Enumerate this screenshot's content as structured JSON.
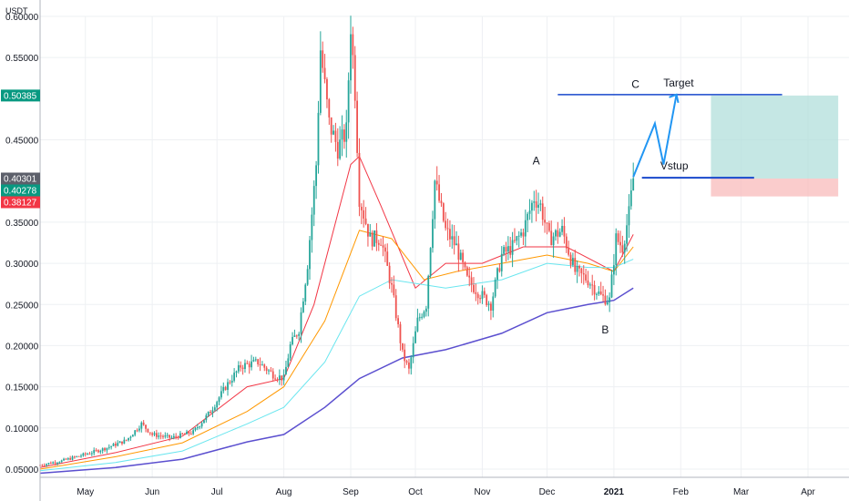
{
  "chart_data": {
    "type": "candlestick",
    "currency": "USDT",
    "ylim": [
      0.04,
      0.6
    ],
    "y_ticks": [
      0.05,
      0.1,
      0.15,
      0.2,
      0.25,
      0.3,
      0.35,
      0.45,
      0.55,
      0.6
    ],
    "y_tick_labels": [
      "0.05000",
      "0.10000",
      "0.15000",
      "0.20000",
      "0.25000",
      "0.30000",
      "0.35000",
      "0.45000",
      "0.55000",
      "0.60000"
    ],
    "x_start": "2020-04-10",
    "x_end": "2021-04-20",
    "x_ticks": [
      {
        "date": "2020-05-01",
        "label": "May"
      },
      {
        "date": "2020-06-01",
        "label": "Jun"
      },
      {
        "date": "2020-07-01",
        "label": "Jul"
      },
      {
        "date": "2020-08-01",
        "label": "Aug"
      },
      {
        "date": "2020-09-01",
        "label": "Sep"
      },
      {
        "date": "2020-10-01",
        "label": "Oct"
      },
      {
        "date": "2020-11-01",
        "label": "Nov"
      },
      {
        "date": "2020-12-01",
        "label": "Dec"
      },
      {
        "date": "2021-01-01",
        "label": "2021",
        "bold": true
      },
      {
        "date": "2021-02-01",
        "label": "Feb"
      },
      {
        "date": "2021-03-01",
        "label": "Mar"
      },
      {
        "date": "2021-04-01",
        "label": "Apr"
      }
    ],
    "price_tags": [
      {
        "value": 0.50385,
        "label": "0.50385",
        "color": "#089981"
      },
      {
        "value": 0.40301,
        "label": "0.40301",
        "color": "#5d606b"
      },
      {
        "value": 0.40278,
        "label": "0.40278",
        "color": "#089981"
      },
      {
        "value": 0.38127,
        "label": "0.38127",
        "color": "#f23645"
      }
    ],
    "price_path": [
      [
        "2020-04-10",
        0.055
      ],
      [
        "2020-04-20",
        0.06
      ],
      [
        "2020-05-01",
        0.068
      ],
      [
        "2020-05-10",
        0.075
      ],
      [
        "2020-05-20",
        0.085
      ],
      [
        "2020-05-27",
        0.105
      ],
      [
        "2020-06-01",
        0.092
      ],
      [
        "2020-06-10",
        0.088
      ],
      [
        "2020-06-20",
        0.095
      ],
      [
        "2020-06-28",
        0.12
      ],
      [
        "2020-07-05",
        0.15
      ],
      [
        "2020-07-12",
        0.175
      ],
      [
        "2020-07-20",
        0.18
      ],
      [
        "2020-07-27",
        0.165
      ],
      [
        "2020-08-01",
        0.16
      ],
      [
        "2020-08-04",
        0.2
      ],
      [
        "2020-08-08",
        0.22
      ],
      [
        "2020-08-12",
        0.3
      ],
      [
        "2020-08-16",
        0.42
      ],
      [
        "2020-08-18",
        0.56
      ],
      [
        "2020-08-22",
        0.47
      ],
      [
        "2020-08-26",
        0.44
      ],
      [
        "2020-08-30",
        0.46
      ],
      [
        "2020-09-01",
        0.59
      ],
      [
        "2020-09-03",
        0.51
      ],
      [
        "2020-09-05",
        0.38
      ],
      [
        "2020-09-10",
        0.33
      ],
      [
        "2020-09-15",
        0.33
      ],
      [
        "2020-09-20",
        0.27
      ],
      [
        "2020-09-25",
        0.19
      ],
      [
        "2020-09-28",
        0.17
      ],
      [
        "2020-10-02",
        0.23
      ],
      [
        "2020-10-06",
        0.25
      ],
      [
        "2020-10-10",
        0.4
      ],
      [
        "2020-10-15",
        0.34
      ],
      [
        "2020-10-20",
        0.32
      ],
      [
        "2020-10-25",
        0.28
      ],
      [
        "2020-11-01",
        0.26
      ],
      [
        "2020-11-05",
        0.25
      ],
      [
        "2020-11-10",
        0.31
      ],
      [
        "2020-11-15",
        0.32
      ],
      [
        "2020-11-20",
        0.34
      ],
      [
        "2020-11-25",
        0.38
      ],
      [
        "2020-11-28",
        0.37
      ],
      [
        "2020-12-02",
        0.33
      ],
      [
        "2020-12-08",
        0.34
      ],
      [
        "2020-12-14",
        0.29
      ],
      [
        "2020-12-20",
        0.28
      ],
      [
        "2020-12-26",
        0.26
      ],
      [
        "2020-12-30",
        0.255
      ],
      [
        "2021-01-02",
        0.33
      ],
      [
        "2021-01-05",
        0.32
      ],
      [
        "2021-01-08",
        0.36
      ],
      [
        "2021-01-10",
        0.403
      ]
    ],
    "moving_averages": [
      {
        "color": "#f23645",
        "points": [
          [
            "2020-04-10",
            0.052
          ],
          [
            "2020-05-15",
            0.07
          ],
          [
            "2020-06-15",
            0.09
          ],
          [
            "2020-07-15",
            0.15
          ],
          [
            "2020-08-01",
            0.16
          ],
          [
            "2020-08-15",
            0.25
          ],
          [
            "2020-09-01",
            0.42
          ],
          [
            "2020-09-05",
            0.43
          ],
          [
            "2020-09-15",
            0.37
          ],
          [
            "2020-10-01",
            0.27
          ],
          [
            "2020-10-15",
            0.3
          ],
          [
            "2020-11-01",
            0.3
          ],
          [
            "2020-11-20",
            0.32
          ],
          [
            "2020-12-10",
            0.32
          ],
          [
            "2021-01-01",
            0.29
          ],
          [
            "2021-01-10",
            0.335
          ]
        ]
      },
      {
        "color": "#ff9800",
        "points": [
          [
            "2020-04-10",
            0.05
          ],
          [
            "2020-05-15",
            0.065
          ],
          [
            "2020-06-15",
            0.082
          ],
          [
            "2020-07-15",
            0.12
          ],
          [
            "2020-08-01",
            0.15
          ],
          [
            "2020-08-20",
            0.23
          ],
          [
            "2020-09-05",
            0.34
          ],
          [
            "2020-09-20",
            0.33
          ],
          [
            "2020-10-05",
            0.28
          ],
          [
            "2020-10-20",
            0.29
          ],
          [
            "2020-11-10",
            0.3
          ],
          [
            "2020-12-01",
            0.31
          ],
          [
            "2020-12-20",
            0.3
          ],
          [
            "2021-01-01",
            0.29
          ],
          [
            "2021-01-10",
            0.32
          ]
        ]
      },
      {
        "color": "#69e6ef",
        "points": [
          [
            "2020-04-10",
            0.048
          ],
          [
            "2020-05-15",
            0.058
          ],
          [
            "2020-06-15",
            0.072
          ],
          [
            "2020-07-15",
            0.105
          ],
          [
            "2020-08-01",
            0.125
          ],
          [
            "2020-08-20",
            0.18
          ],
          [
            "2020-09-05",
            0.26
          ],
          [
            "2020-09-20",
            0.28
          ],
          [
            "2020-10-15",
            0.27
          ],
          [
            "2020-11-10",
            0.28
          ],
          [
            "2020-12-01",
            0.3
          ],
          [
            "2020-12-20",
            0.295
          ],
          [
            "2021-01-01",
            0.295
          ],
          [
            "2021-01-10",
            0.305
          ]
        ]
      },
      {
        "color": "#5b4fcf",
        "points": [
          [
            "2020-04-10",
            0.045
          ],
          [
            "2020-05-15",
            0.052
          ],
          [
            "2020-06-15",
            0.062
          ],
          [
            "2020-07-15",
            0.083
          ],
          [
            "2020-08-01",
            0.092
          ],
          [
            "2020-08-20",
            0.125
          ],
          [
            "2020-09-05",
            0.16
          ],
          [
            "2020-09-25",
            0.185
          ],
          [
            "2020-10-15",
            0.195
          ],
          [
            "2020-11-10",
            0.215
          ],
          [
            "2020-12-01",
            0.24
          ],
          [
            "2020-12-20",
            0.25
          ],
          [
            "2021-01-01",
            0.255
          ],
          [
            "2021-01-10",
            0.27
          ]
        ]
      }
    ],
    "annotations": {
      "labels": [
        {
          "text": "A",
          "date": "2020-11-26",
          "value": 0.42
        },
        {
          "text": "B",
          "date": "2020-12-28",
          "value": 0.215
        },
        {
          "text": "C",
          "date": "2021-01-11",
          "value": 0.513
        },
        {
          "text": "Target",
          "date": "2021-01-31",
          "value": 0.515
        },
        {
          "text": "Vstup",
          "date": "2021-01-29",
          "value": 0.414
        }
      ],
      "target_line": {
        "from": "2020-12-06",
        "to": "2021-03-20",
        "value": 0.505
      },
      "entry_line": {
        "from": "2021-01-14",
        "to": "2021-03-07",
        "value": 0.404
      },
      "projection": [
        [
          "2021-01-10",
          0.405
        ],
        [
          "2021-01-20",
          0.47
        ],
        [
          "2021-01-24",
          0.42
        ],
        [
          "2021-01-30",
          0.505
        ]
      ],
      "projection_color": "#2196f3",
      "line_color": "#1848cc",
      "profit_zone": {
        "from": "2021-02-15",
        "to": "2021-04-15",
        "top": 0.50385,
        "bottom": 0.40301,
        "color": "#b2dfdb"
      },
      "loss_zone": {
        "from": "2021-02-15",
        "to": "2021-04-15",
        "top": 0.40301,
        "bottom": 0.38127,
        "color": "#f8bbbb"
      }
    }
  }
}
